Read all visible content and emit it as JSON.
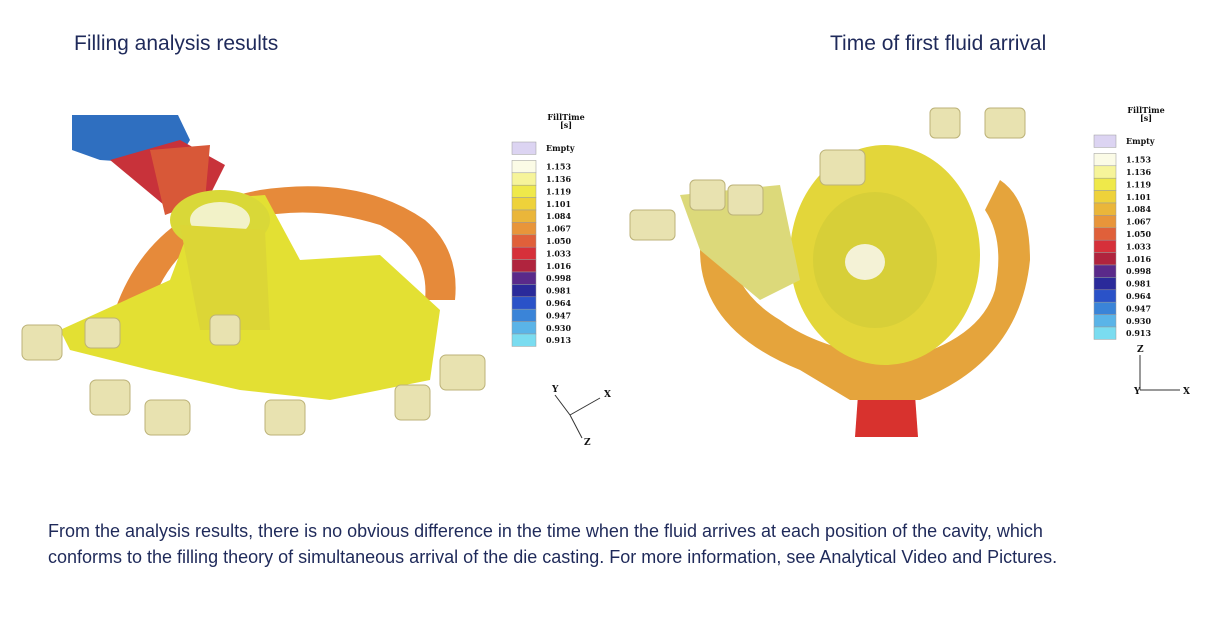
{
  "left_panel": {
    "title": "Filling analysis results",
    "legend": {
      "title": [
        "FillTime",
        "[s]"
      ],
      "labels": [
        "Empty",
        "1.153",
        "1.136",
        "1.119",
        "1.101",
        "1.084",
        "1.067",
        "1.050",
        "1.033",
        "1.016",
        "0.998",
        "0.981",
        "0.964",
        "0.947",
        "0.930",
        "0.913"
      ]
    },
    "axes": [
      "Y",
      "X",
      "Z"
    ]
  },
  "right_panel": {
    "title": "Time of first fluid arrival",
    "legend": {
      "title": [
        "FillTime",
        "[s]"
      ],
      "labels": [
        "Empty",
        "1.153",
        "1.136",
        "1.119",
        "1.101",
        "1.084",
        "1.067",
        "1.050",
        "1.033",
        "1.016",
        "0.998",
        "0.981",
        "0.964",
        "0.947",
        "0.930",
        "0.913"
      ]
    },
    "axes": [
      "Z",
      "Y",
      "X"
    ]
  },
  "body": {
    "text": "From the analysis results, there is no obvious difference in the time when the fluid arrives at each position of the cavity, which conforms to the filling theory of simultaneous arrival of the die casting. For more information, see Analytical Video and Pictures."
  }
}
